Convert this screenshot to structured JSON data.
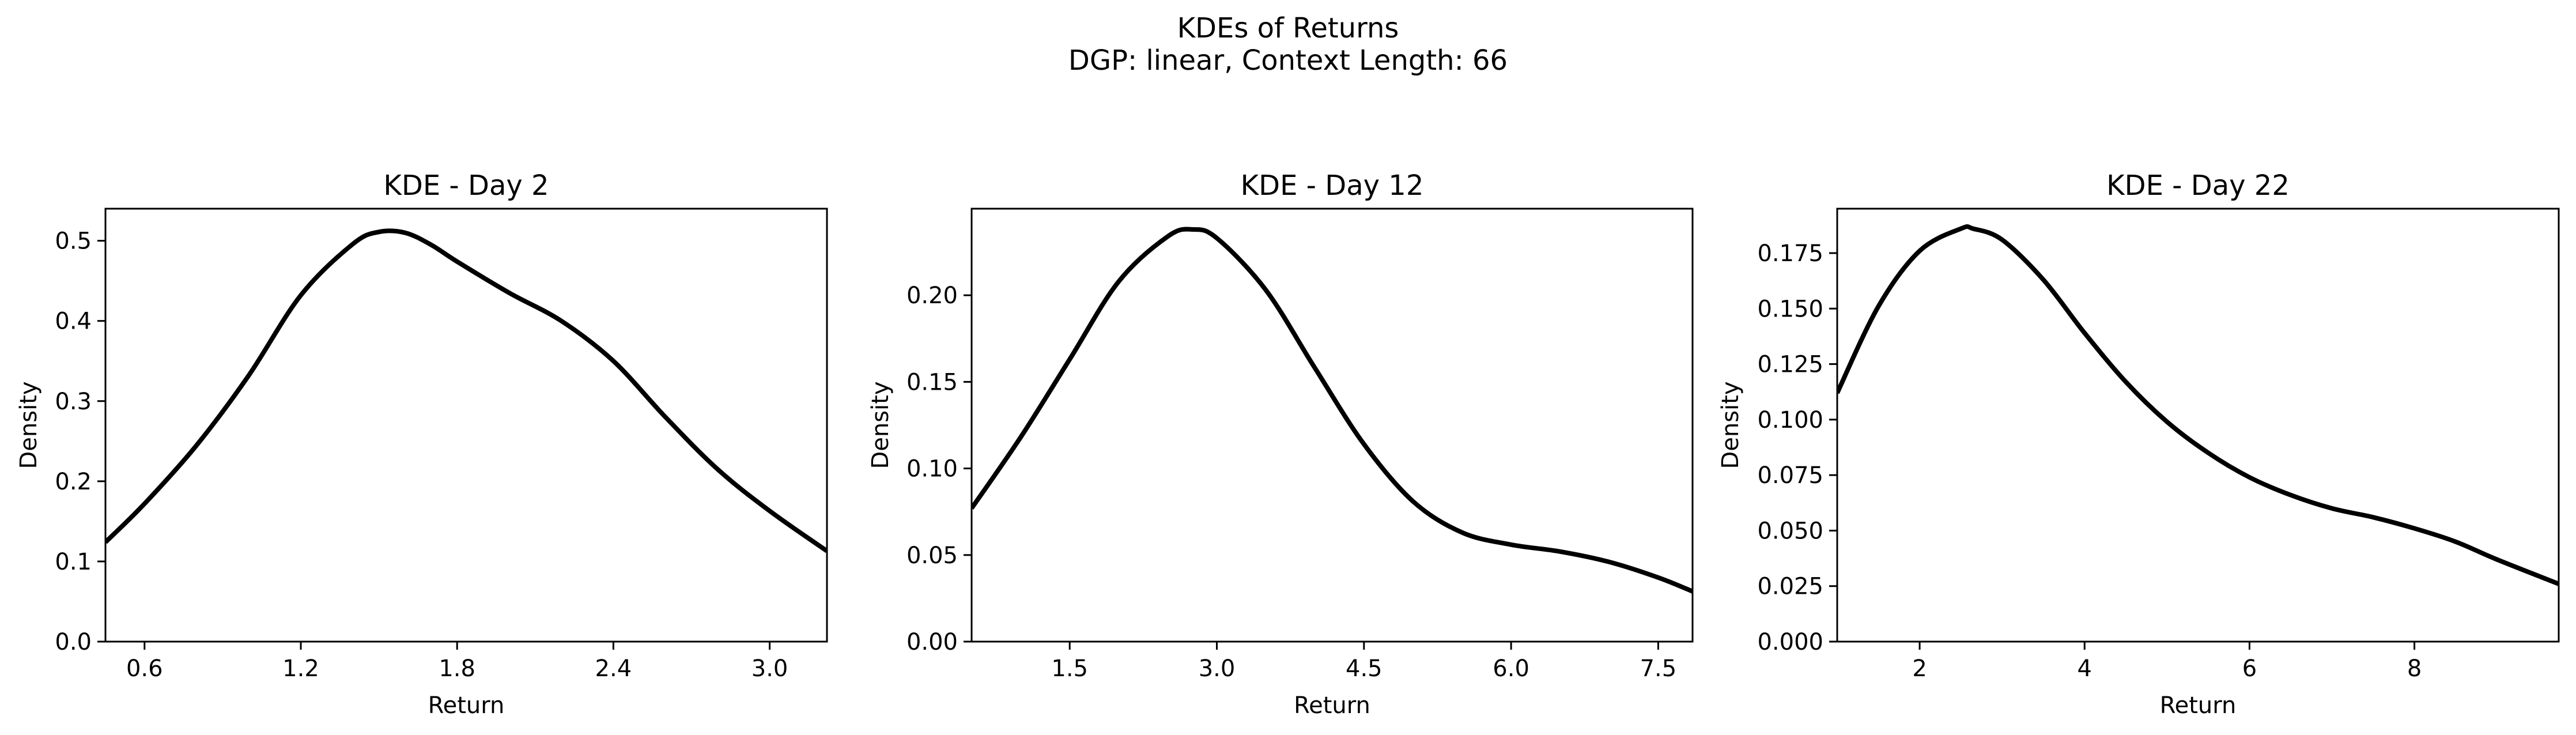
{
  "figure": {
    "title_line1": "KDEs of Returns",
    "title_line2": "DGP: linear, Context Length: 66"
  },
  "chart_data": [
    {
      "type": "line",
      "title": "KDE - Day 2",
      "xlabel": "Return",
      "ylabel": "Density",
      "xlim": [
        0.45,
        3.22
      ],
      "ylim": [
        0.0,
        0.54
      ],
      "xticks": [
        0.6,
        1.2,
        1.8,
        2.4,
        3.0
      ],
      "xtick_labels": [
        "0.6",
        "1.2",
        "1.8",
        "2.4",
        "3.0"
      ],
      "yticks": [
        0.0,
        0.1,
        0.2,
        0.3,
        0.4,
        0.5
      ],
      "ytick_labels": [
        "0.0",
        "0.1",
        "0.2",
        "0.3",
        "0.4",
        "0.5"
      ],
      "line_color": "#000000",
      "series": [
        {
          "x": [
            0.45,
            0.6,
            0.8,
            1.0,
            1.2,
            1.4,
            1.5,
            1.6,
            1.7,
            1.8,
            2.0,
            2.2,
            2.4,
            2.6,
            2.8,
            3.0,
            3.22
          ],
          "y": [
            0.124,
            0.172,
            0.245,
            0.332,
            0.432,
            0.496,
            0.511,
            0.51,
            0.495,
            0.474,
            0.435,
            0.4,
            0.35,
            0.28,
            0.215,
            0.163,
            0.113
          ]
        }
      ]
    },
    {
      "type": "line",
      "title": "KDE - Day 12",
      "xlabel": "Return",
      "ylabel": "Density",
      "xlim": [
        0.5,
        7.85
      ],
      "ylim": [
        0.0,
        0.25
      ],
      "xticks": [
        1.5,
        3.0,
        4.5,
        6.0,
        7.5
      ],
      "xtick_labels": [
        "1.5",
        "3.0",
        "4.5",
        "6.0",
        "7.5"
      ],
      "yticks": [
        0.0,
        0.05,
        0.1,
        0.15,
        0.2
      ],
      "ytick_labels": [
        "0.00",
        "0.05",
        "0.10",
        "0.15",
        "0.20"
      ],
      "line_color": "#000000",
      "series": [
        {
          "x": [
            0.5,
            1.0,
            1.5,
            2.0,
            2.5,
            2.75,
            3.0,
            3.5,
            4.0,
            4.5,
            5.0,
            5.5,
            6.0,
            6.5,
            7.0,
            7.5,
            7.85
          ],
          "y": [
            0.077,
            0.118,
            0.163,
            0.208,
            0.234,
            0.238,
            0.233,
            0.203,
            0.158,
            0.114,
            0.081,
            0.063,
            0.056,
            0.052,
            0.046,
            0.037,
            0.029
          ]
        }
      ]
    },
    {
      "type": "line",
      "title": "KDE - Day 22",
      "xlabel": "Return",
      "ylabel": "Density",
      "xlim": [
        1.0,
        9.75
      ],
      "ylim": [
        0.0,
        0.195
      ],
      "xticks": [
        2,
        4,
        6,
        8
      ],
      "xtick_labels": [
        "2",
        "4",
        "6",
        "8"
      ],
      "yticks": [
        0.0,
        0.025,
        0.05,
        0.075,
        0.1,
        0.125,
        0.15,
        0.175
      ],
      "ytick_labels": [
        "0.000",
        "0.025",
        "0.050",
        "0.075",
        "0.100",
        "0.125",
        "0.150",
        "0.175"
      ],
      "line_color": "#000000",
      "series": [
        {
          "x": [
            1.0,
            1.5,
            2.0,
            2.5,
            2.65,
            3.0,
            3.5,
            4.0,
            4.5,
            5.0,
            5.5,
            6.0,
            6.5,
            7.0,
            7.5,
            8.0,
            8.5,
            9.0,
            9.75
          ],
          "y": [
            0.112,
            0.151,
            0.176,
            0.186,
            0.186,
            0.181,
            0.163,
            0.139,
            0.117,
            0.099,
            0.085,
            0.074,
            0.066,
            0.06,
            0.056,
            0.051,
            0.045,
            0.037,
            0.026
          ]
        }
      ]
    }
  ]
}
